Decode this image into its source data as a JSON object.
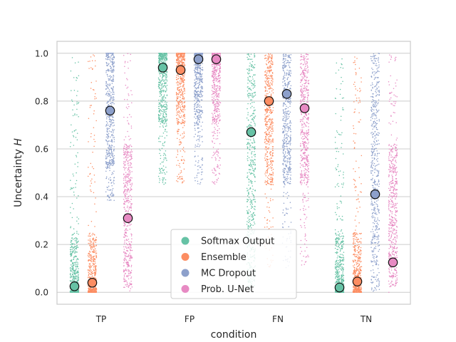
{
  "chart_data": {
    "type": "scatter",
    "title": "",
    "xlabel": "condition",
    "ylabel_main": "Uncertainty ",
    "ylabel_var": "H",
    "ylim": [
      -0.05,
      1.05
    ],
    "yticks": [
      0.0,
      0.2,
      0.4,
      0.6,
      0.8,
      1.0
    ],
    "ytick_labels": [
      "0.0",
      "0.2",
      "0.4",
      "0.6",
      "0.8",
      "1.0"
    ],
    "categories": [
      "TP",
      "FP",
      "FN",
      "TN"
    ],
    "grid": true,
    "legend_position": "lower-center",
    "series": [
      {
        "name": "Softmax Output",
        "color": "#66c2a5",
        "means": [
          0.025,
          0.94,
          0.67,
          0.02
        ]
      },
      {
        "name": "Ensemble",
        "color": "#fc8d62",
        "means": [
          0.04,
          0.93,
          0.8,
          0.045
        ]
      },
      {
        "name": "MC Dropout",
        "color": "#8da0cb",
        "means": [
          0.76,
          0.975,
          0.83,
          0.41
        ]
      },
      {
        "name": "Prob. U-Net",
        "color": "#e78ac3",
        "means": [
          0.31,
          0.975,
          0.77,
          0.125
        ]
      }
    ]
  }
}
